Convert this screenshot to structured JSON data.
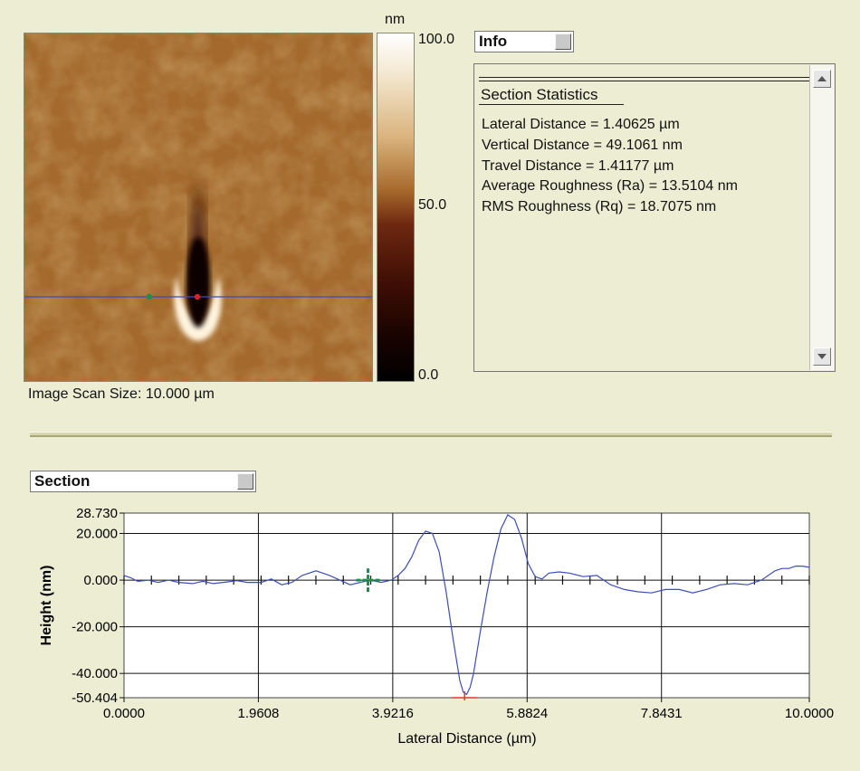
{
  "colorbar": {
    "unit": "nm",
    "max": "100.0",
    "mid": "50.0",
    "min": "0.0"
  },
  "image": {
    "scan_size_label": "Image Scan Size: 10.000 µm",
    "line_color": "#3a4cc8",
    "marker_left_color": "#19914b",
    "marker_right_color": "#d6202a"
  },
  "info": {
    "dropdown_label": "Info",
    "title": "Section Statistics",
    "stats": [
      "Lateral Distance = 1.40625 µm",
      "Vertical Distance = 49.1061 nm",
      "Travel Distance = 1.41177 µm",
      "Average Roughness (Ra) = 13.5104 nm",
      "RMS Roughness (Rq) = 18.7075 nm"
    ]
  },
  "section": {
    "dropdown_label": "Section"
  },
  "chart_data": {
    "type": "line",
    "xlabel": "Lateral Distance (µm)",
    "ylabel": "Height (nm)",
    "xlim": [
      0,
      10
    ],
    "ylim": [
      -50.404,
      28.73
    ],
    "x_ticks": [
      "0.0000",
      "1.9608",
      "3.9216",
      "5.8824",
      "7.8431",
      "10.0000"
    ],
    "x_tick_values": [
      0,
      1.9608,
      3.9216,
      5.8824,
      7.8431,
      10.0
    ],
    "y_ticks": [
      "28.730",
      "20.000",
      "0.000",
      "-20.000",
      "-40.000",
      "-50.404"
    ],
    "y_tick_values": [
      28.73,
      20.0,
      0.0,
      -20.0,
      -40.0,
      -50.404
    ],
    "grid": true,
    "line_color": "#3d4fb5",
    "marker_left": {
      "x": 3.56,
      "y": 0.0,
      "color": "#19914b"
    },
    "marker_right": {
      "x": 4.97,
      "y": -50.0,
      "color": "#e03a2a"
    },
    "series": [
      {
        "x": [
          0.0,
          0.1,
          0.2,
          0.35,
          0.5,
          0.65,
          0.8,
          1.0,
          1.15,
          1.3,
          1.5,
          1.65,
          1.8,
          2.0,
          2.15,
          2.3,
          2.45,
          2.6,
          2.8,
          3.0,
          3.15,
          3.3,
          3.45,
          3.6,
          3.75,
          3.9,
          4.0,
          4.1,
          4.2,
          4.3,
          4.4,
          4.5,
          4.6,
          4.7,
          4.8,
          4.9,
          4.95,
          5.0,
          5.05,
          5.1,
          5.2,
          5.3,
          5.4,
          5.5,
          5.6,
          5.7,
          5.8,
          5.9,
          6.0,
          6.1,
          6.2,
          6.35,
          6.5,
          6.7,
          6.9,
          7.1,
          7.3,
          7.5,
          7.7,
          7.9,
          8.1,
          8.3,
          8.5,
          8.7,
          8.9,
          9.1,
          9.3,
          9.5,
          9.6,
          9.7,
          9.8,
          9.9,
          10.0
        ],
        "y": [
          2.0,
          1.0,
          -0.5,
          0.0,
          -1.0,
          0.0,
          -1.0,
          -1.5,
          -0.5,
          -1.5,
          -0.8,
          -0.2,
          -1.0,
          -1.0,
          0.5,
          -2.0,
          -1.0,
          2.0,
          4.0,
          2.0,
          0.0,
          -2.0,
          -1.0,
          0.0,
          -1.0,
          0.0,
          2.0,
          5.0,
          10.0,
          17.0,
          21.0,
          20.0,
          12.0,
          -5.0,
          -25.0,
          -43.0,
          -48.0,
          -49.0,
          -46.0,
          -40.0,
          -22.0,
          -5.0,
          10.0,
          22.0,
          28.0,
          26.0,
          18.0,
          7.0,
          1.5,
          0.5,
          3.0,
          3.5,
          3.0,
          1.5,
          2.0,
          -2.0,
          -4.0,
          -5.0,
          -5.5,
          -4.0,
          -4.0,
          -5.5,
          -4.0,
          -2.0,
          -1.5,
          -2.0,
          0.0,
          4.0,
          5.0,
          5.0,
          6.0,
          6.0,
          5.5
        ]
      }
    ]
  }
}
